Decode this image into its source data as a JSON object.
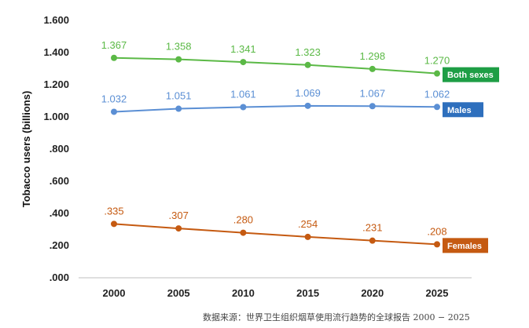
{
  "chart_data": {
    "type": "line",
    "title": "",
    "xlabel": "",
    "ylabel": "Tobacco users (billions)",
    "x": [
      2000,
      2005,
      2010,
      2015,
      2020,
      2025
    ],
    "ylim": [
      0,
      1.6
    ],
    "y_ticks": [
      ".000",
      ".200",
      ".400",
      ".600",
      ".800",
      "1.000",
      "1.200",
      "1.400",
      "1.600"
    ],
    "grid": false,
    "series": [
      {
        "name": "Both sexes",
        "color": "#5bb946",
        "tag_color": "#1e9e45",
        "values": [
          1.367,
          1.358,
          1.341,
          1.323,
          1.298,
          1.27
        ],
        "labels": [
          "1.367",
          "1.358",
          "1.341",
          "1.323",
          "1.298",
          "1.270"
        ]
      },
      {
        "name": "Males",
        "color": "#5b8fd4",
        "tag_color": "#2e6fbd",
        "values": [
          1.032,
          1.051,
          1.061,
          1.069,
          1.067,
          1.062
        ],
        "labels": [
          "1.032",
          "1.051",
          "1.061",
          "1.069",
          "1.067",
          "1.062"
        ]
      },
      {
        "name": "Females",
        "color": "#c55a11",
        "tag_color": "#c55a11",
        "values": [
          0.335,
          0.307,
          0.28,
          0.254,
          0.231,
          0.208
        ],
        "labels": [
          ".335",
          ".307",
          ".280",
          ".254",
          ".231",
          ".208"
        ]
      }
    ]
  },
  "source_text": "数据来源：世界卫生组织烟草使用流行趋势的全球报告 2000 − 2025"
}
